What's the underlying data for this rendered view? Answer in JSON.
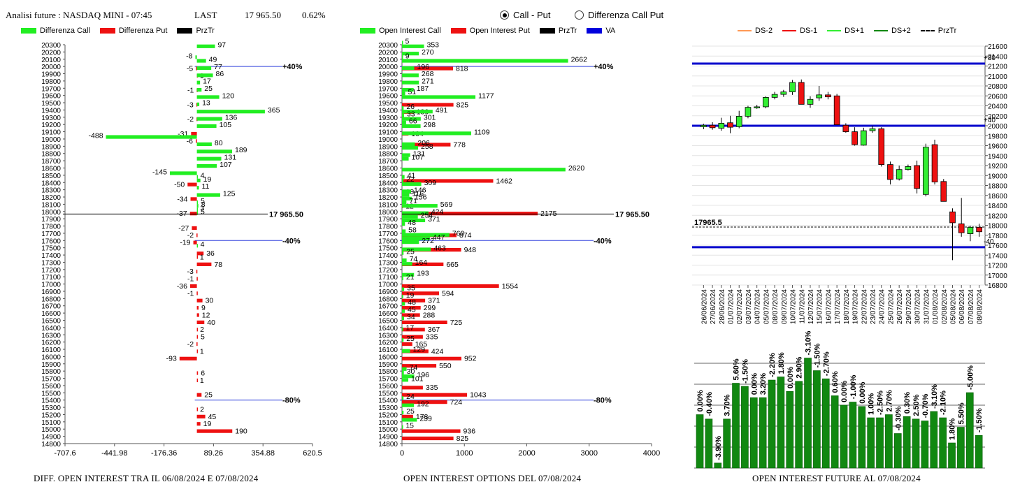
{
  "header": {
    "instrument": "Analisi future : NASDAQ MINI - 07:45",
    "last_label": "LAST",
    "last_value": "17 965.50",
    "change_pct": "0.62%"
  },
  "mode": {
    "options": [
      "Call - Put",
      "Differenza Call Put"
    ],
    "selected": "Call - Put"
  },
  "legends": {
    "diff": [
      {
        "label": "Differenza Call",
        "color": "#22ee22"
      },
      {
        "label": "Differenza Put",
        "color": "#ee1111"
      },
      {
        "label": "PrzTr",
        "color": "#000000"
      }
    ],
    "oi": [
      {
        "label": "Open Interest Call",
        "color": "#22ee22"
      },
      {
        "label": "Open Interest Put",
        "color": "#ee1111"
      },
      {
        "label": "PrzTr",
        "color": "#000000"
      },
      {
        "label": "VA",
        "color": "#0000dd"
      }
    ],
    "fut": [
      {
        "label": "DS-2",
        "color": "#ff9955",
        "style": "solid"
      },
      {
        "label": "DS-1",
        "color": "#ee1111",
        "style": "solid"
      },
      {
        "label": "DS+1",
        "color": "#33ee33",
        "style": "solid"
      },
      {
        "label": "DS+2",
        "color": "#118811",
        "style": "solid"
      },
      {
        "label": "PrzTr",
        "color": "#000000",
        "style": "dashed"
      }
    ]
  },
  "footers": {
    "diff": "DIFF. OPEN INTEREST TRA IL 06/08/2024 E 07/08/2024",
    "oi": "OPEN INTEREST OPTIONS DEL 07/08/2024",
    "fut": "OPEN INTEREST FUTURE AL 07/08/2024"
  },
  "chart_data": [
    {
      "id": "diff",
      "type": "bar",
      "orientation": "horizontal",
      "title": "DIFF. OPEN INTEREST TRA IL 06/08/2024 E 07/08/2024",
      "y_ticks": [
        20300,
        20200,
        20100,
        20000,
        19900,
        19800,
        19700,
        19600,
        19500,
        19400,
        19300,
        19200,
        19100,
        19000,
        18900,
        18800,
        18700,
        18600,
        18500,
        18400,
        18300,
        18200,
        18100,
        18000,
        17900,
        17800,
        17700,
        17600,
        17500,
        17400,
        17300,
        17200,
        17100,
        17000,
        16900,
        16800,
        16700,
        16600,
        16500,
        16400,
        16300,
        16200,
        16100,
        16000,
        15900,
        15800,
        15700,
        15600,
        15500,
        15400,
        15300,
        15200,
        15100,
        15000,
        14900,
        14800
      ],
      "xlim": [
        -707.6,
        620.5
      ],
      "x_ticks": [
        "-707.6",
        "-441.98",
        "-176.36",
        "89.26",
        "354.88",
        "620.5"
      ],
      "call": [
        [
          20250,
          97
        ],
        [
          20100,
          -8
        ],
        [
          20050,
          49
        ],
        [
          19950,
          77
        ],
        [
          19850,
          86
        ],
        [
          19750,
          17
        ],
        [
          19650,
          25
        ],
        [
          19550,
          120
        ],
        [
          19450,
          13
        ],
        [
          19350,
          365
        ],
        [
          19250,
          136
        ],
        [
          19150,
          105
        ],
        [
          19000,
          -488
        ],
        [
          18900,
          80
        ],
        [
          18800,
          189
        ],
        [
          18700,
          131
        ],
        [
          18600,
          107
        ],
        [
          18500,
          -145
        ],
        [
          18450,
          4
        ],
        [
          18400,
          19
        ],
        [
          18300,
          11
        ],
        [
          18200,
          125
        ],
        [
          18100,
          5
        ],
        [
          18050,
          8
        ],
        [
          18000,
          3
        ],
        [
          17950,
          5
        ],
        [
          17500,
          4
        ]
      ],
      "put": [
        [
          20000,
          -5
        ],
        [
          19900,
          1
        ],
        [
          19700,
          -1
        ],
        [
          19500,
          -3
        ],
        [
          19300,
          -2
        ],
        [
          19100,
          -31
        ],
        [
          19000,
          -6
        ],
        [
          18400,
          -50
        ],
        [
          18200,
          -34
        ],
        [
          18000,
          -37
        ],
        [
          17800,
          -27
        ],
        [
          17700,
          -2
        ],
        [
          17600,
          -19
        ],
        [
          17450,
          36
        ],
        [
          17400,
          1
        ],
        [
          17300,
          78
        ],
        [
          17200,
          -3
        ],
        [
          17100,
          -1
        ],
        [
          17000,
          -36
        ],
        [
          16900,
          -1
        ],
        [
          16800,
          30
        ],
        [
          16700,
          9
        ],
        [
          16600,
          12
        ],
        [
          16500,
          40
        ],
        [
          16400,
          2
        ],
        [
          16300,
          5
        ],
        [
          16200,
          -2
        ],
        [
          16100,
          1
        ],
        [
          16000,
          -93
        ],
        [
          15800,
          6
        ],
        [
          15700,
          1
        ],
        [
          15500,
          25
        ],
        [
          15300,
          2
        ],
        [
          15200,
          45
        ],
        [
          15100,
          19
        ],
        [
          15000,
          190
        ]
      ],
      "przTr": 17965.5,
      "przTr_label": "17 965.50",
      "levels": [
        {
          "label": "+40%",
          "y": 20000
        },
        {
          "label": "-40%",
          "y": 17600
        },
        {
          "label": "-80%",
          "y": 15400
        }
      ]
    },
    {
      "id": "oi",
      "type": "bar",
      "orientation": "horizontal",
      "title": "OPEN INTEREST OPTIONS DEL 07/08/2024",
      "y_ticks": [
        20300,
        20200,
        20100,
        20000,
        19900,
        19800,
        19700,
        19600,
        19500,
        19400,
        19300,
        19200,
        19100,
        19000,
        18900,
        18800,
        18700,
        18600,
        18500,
        18400,
        18300,
        18200,
        18100,
        18000,
        17900,
        17800,
        17700,
        17600,
        17500,
        17400,
        17300,
        17200,
        17100,
        17000,
        16900,
        16800,
        16700,
        16600,
        16500,
        16400,
        16300,
        16200,
        16100,
        16000,
        15900,
        15800,
        15700,
        15600,
        15500,
        15400,
        15300,
        15200,
        15100,
        15000,
        14900,
        14800
      ],
      "xlim": [
        0,
        4000
      ],
      "x_ticks": [
        "0",
        "1000",
        "2000",
        "3000",
        "4000"
      ],
      "call": [
        [
          20300,
          5
        ],
        [
          20250,
          353
        ],
        [
          20150,
          270
        ],
        [
          20100,
          9
        ],
        [
          20050,
          2662
        ],
        [
          19950,
          196
        ],
        [
          19850,
          268
        ],
        [
          19750,
          271
        ],
        [
          19650,
          187
        ],
        [
          19600,
          51
        ],
        [
          19550,
          1177
        ],
        [
          19400,
          26
        ],
        [
          19350,
          491
        ],
        [
          19300,
          33
        ],
        [
          19250,
          301
        ],
        [
          19200,
          66
        ],
        [
          19150,
          298
        ],
        [
          19050,
          1109
        ],
        [
          18900,
          206
        ],
        [
          18850,
          258
        ],
        [
          18750,
          131
        ],
        [
          18700,
          107
        ],
        [
          18550,
          2620
        ],
        [
          18450,
          41
        ],
        [
          18400,
          22
        ],
        [
          18350,
          309
        ],
        [
          18250,
          146
        ],
        [
          18200,
          116
        ],
        [
          18150,
          156
        ],
        [
          18100,
          71
        ],
        [
          18050,
          569
        ],
        [
          17950,
          424
        ],
        [
          17900,
          254
        ],
        [
          17850,
          371
        ],
        [
          17800,
          48
        ],
        [
          17700,
          58
        ],
        [
          17650,
          760
        ],
        [
          17600,
          447
        ],
        [
          17550,
          272
        ],
        [
          17450,
          463
        ],
        [
          17400,
          25
        ],
        [
          17300,
          74
        ],
        [
          17250,
          164
        ],
        [
          17100,
          193
        ],
        [
          17050,
          21
        ],
        [
          16900,
          35
        ],
        [
          16800,
          19
        ],
        [
          16700,
          48
        ],
        [
          16600,
          45
        ],
        [
          16500,
          34
        ],
        [
          16350,
          17
        ],
        [
          16200,
          25
        ],
        [
          16050,
          129
        ],
        [
          15800,
          74
        ],
        [
          15750,
          30
        ],
        [
          15700,
          196
        ],
        [
          15650,
          101
        ],
        [
          15400,
          24
        ],
        [
          15300,
          192
        ],
        [
          15200,
          25
        ],
        [
          15100,
          239
        ],
        [
          15000,
          15
        ]
      ],
      "put": [
        [
          20000,
          818
        ],
        [
          19500,
          825
        ],
        [
          19400,
          186
        ],
        [
          19100,
          104
        ],
        [
          18950,
          778
        ],
        [
          18450,
          1462
        ],
        [
          18300,
          18
        ],
        [
          18100,
          12
        ],
        [
          18000,
          2175
        ],
        [
          17700,
          874
        ],
        [
          17500,
          948
        ],
        [
          17300,
          665
        ],
        [
          17000,
          1554
        ],
        [
          16900,
          594
        ],
        [
          16800,
          371
        ],
        [
          16700,
          299
        ],
        [
          16600,
          288
        ],
        [
          16500,
          725
        ],
        [
          16400,
          367
        ],
        [
          16300,
          335
        ],
        [
          16200,
          165
        ],
        [
          16100,
          424
        ],
        [
          16000,
          952
        ],
        [
          15900,
          550
        ],
        [
          15600,
          335
        ],
        [
          15500,
          1043
        ],
        [
          15400,
          724
        ],
        [
          15200,
          178
        ],
        [
          15000,
          936
        ],
        [
          14900,
          825
        ]
      ],
      "przTr": 17965.5,
      "przTr_label": "17 965.50",
      "levels": [
        {
          "label": "+40%",
          "y": 20000
        },
        {
          "label": "-40%",
          "y": 17600
        },
        {
          "label": "-80%",
          "y": 15400
        }
      ]
    },
    {
      "id": "candles",
      "type": "candlestick",
      "ylim": [
        16800,
        21600
      ],
      "y_ticks": [
        21600,
        21400,
        21200,
        21000,
        20800,
        20600,
        20400,
        20200,
        20000,
        19800,
        19600,
        19400,
        19200,
        19000,
        18800,
        18600,
        18400,
        18200,
        18000,
        17800,
        17600,
        17400,
        17200,
        17000,
        16800
      ],
      "dates": [
        "26/06/2024",
        "27/06/2024",
        "28/06/2024",
        "01/07/2024",
        "02/07/2024",
        "03/07/2024",
        "04/07/2024",
        "05/07/2024",
        "08/07/2024",
        "09/07/2024",
        "10/07/2024",
        "11/07/2024",
        "12/07/2024",
        "15/07/2024",
        "16/07/2024",
        "17/07/2024",
        "18/07/2024",
        "19/07/2024",
        "22/07/2024",
        "23/07/2024",
        "24/07/2024",
        "25/07/2024",
        "26/07/2024",
        "29/07/2024",
        "30/07/2024",
        "31/07/2024",
        "01/08/2024",
        "02/08/2024",
        "05/08/2024",
        "06/08/2024",
        "07/08/2024",
        "08/08/2024"
      ],
      "ohlc": [
        [
          19980,
          20040,
          19930,
          20010
        ],
        [
          20010,
          20070,
          19920,
          19960
        ],
        [
          19950,
          20160,
          19900,
          20050
        ],
        [
          20060,
          20200,
          19850,
          19970
        ],
        [
          19980,
          20300,
          19950,
          20190
        ],
        [
          20190,
          20400,
          20150,
          20370
        ],
        [
          20370,
          20420,
          20340,
          20380
        ],
        [
          20380,
          20590,
          20350,
          20570
        ],
        [
          20570,
          20680,
          20530,
          20630
        ],
        [
          20630,
          20720,
          20580,
          20680
        ],
        [
          20680,
          20920,
          20620,
          20870
        ],
        [
          20870,
          20930,
          20450,
          20430
        ],
        [
          20430,
          20590,
          20360,
          20530
        ],
        [
          20560,
          20800,
          20500,
          20620
        ],
        [
          20620,
          20680,
          20530,
          20580
        ],
        [
          20600,
          20640,
          20020,
          20020
        ],
        [
          20010,
          20050,
          19860,
          19880
        ],
        [
          19880,
          19970,
          19600,
          19620
        ],
        [
          19610,
          19960,
          19600,
          19900
        ],
        [
          19900,
          20000,
          19860,
          19940
        ],
        [
          19940,
          19970,
          19180,
          19220
        ],
        [
          19220,
          19280,
          18820,
          18920
        ],
        [
          18930,
          19200,
          18900,
          19120
        ],
        [
          19120,
          19220,
          19100,
          19180
        ],
        [
          19200,
          19300,
          18640,
          18740
        ],
        [
          18620,
          19640,
          18580,
          19570
        ],
        [
          19620,
          19720,
          18820,
          18870
        ],
        [
          18880,
          18930,
          18500,
          18480
        ],
        [
          18270,
          18340,
          17300,
          18050
        ],
        [
          18030,
          18550,
          17770,
          17850
        ],
        [
          17830,
          17990,
          17680,
          17960
        ],
        [
          17960,
          18030,
          17770,
          17870
        ]
      ],
      "blue_levels": [
        21250,
        20000,
        17560
      ],
      "blue_labels": [
        "+80",
        "+40",
        "-40"
      ],
      "przTr": 17965.5,
      "przTr_label": "17965.5"
    },
    {
      "id": "oi_future",
      "type": "bar",
      "title": "OPEN INTEREST FUTURE AL 07/08/2024",
      "values": [
        0.85,
        0.78,
        0.08,
        0.78,
        1.35,
        1.3,
        1.12,
        1.12,
        1.4,
        1.45,
        1.22,
        1.38,
        1.75,
        1.55,
        1.42,
        1.15,
        1.0,
        1.05,
        0.98,
        0.8,
        0.8,
        0.85,
        0.55,
        0.82,
        0.78,
        0.75,
        0.9,
        0.8,
        0.4,
        0.65,
        1.2,
        0.52
      ],
      "labels": [
        "0.00%",
        "-0.40%",
        "-3.90%",
        "3.70%",
        "5.60%",
        "-1.50%",
        "0.00%",
        "3.20%",
        "-2.20%",
        "1.80%",
        "2.90%",
        "-3.10%",
        "-1.50%",
        "-2.70%",
        "0.60%",
        "0.00%",
        "-1.00%",
        "0.00%",
        "1.00%",
        "-2.50%",
        "2.70%",
        "-0.30%",
        "0.30%",
        "2.50%",
        "-0.70%",
        "-3.10%",
        "-2.10%",
        "1.80%",
        "5.50%",
        "-5.00%",
        "-1.50%",
        "0.00%"
      ],
      "label_index_map": [
        0,
        1,
        2,
        3,
        4,
        5,
        6,
        7,
        8,
        9,
        11,
        12,
        13,
        14,
        15,
        16,
        17,
        18,
        19,
        20,
        21,
        22,
        23,
        24,
        25,
        26,
        27,
        28,
        29,
        30,
        31,
        10
      ]
    }
  ]
}
